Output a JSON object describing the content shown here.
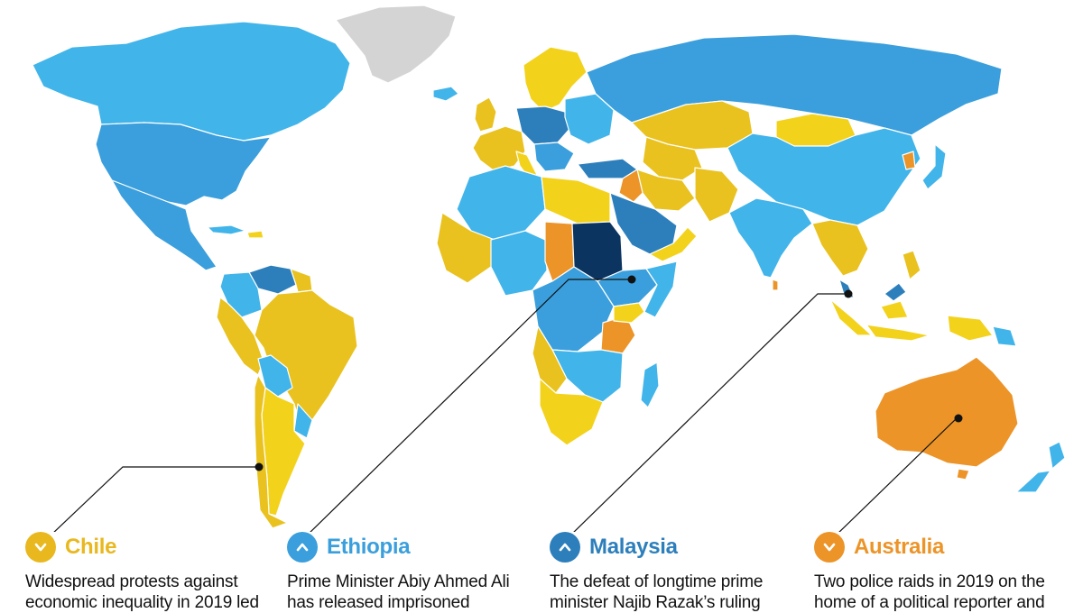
{
  "colors": {
    "bright_yellow": "#f3d21c",
    "gold": "#e9c21f",
    "orange": "#ec9428",
    "light_blue": "#41b4ea",
    "mid_blue": "#3a9fdc",
    "steel_blue": "#2d7fbc",
    "dark_navy": "#0b3460",
    "no_data_gray": "#d4d4d4"
  },
  "callouts": [
    {
      "country": "Chile",
      "direction": "down",
      "color": "#e9b81f",
      "text": "Widespread protests against economic inequality in 2019 led"
    },
    {
      "country": "Ethiopia",
      "direction": "up",
      "color": "#3a9fdc",
      "text": "Prime Minister Abiy Ahmed Ali has released imprisoned"
    },
    {
      "country": "Malaysia",
      "direction": "up",
      "color": "#2d7fbc",
      "text": "The defeat of longtime prime minister Najib Razak’s ruling"
    },
    {
      "country": "Australia",
      "direction": "down",
      "color": "#ec9428",
      "text": "Two police raids in 2019 on the home of a political reporter and"
    }
  ]
}
